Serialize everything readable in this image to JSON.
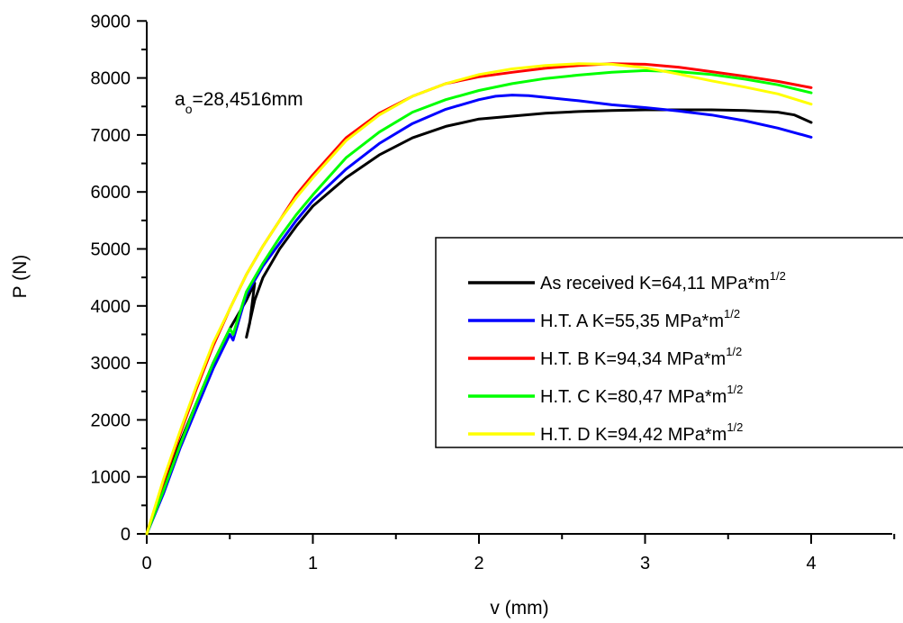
{
  "chart_data": {
    "type": "line",
    "title": "",
    "xlabel": "v (mm)",
    "ylabel": "P (N)",
    "xlim": [
      0,
      4.5
    ],
    "ylim": [
      0,
      9000
    ],
    "xticks": [
      0,
      1,
      2,
      3,
      4
    ],
    "yticks": [
      0,
      1000,
      2000,
      3000,
      4000,
      5000,
      6000,
      7000,
      8000,
      9000
    ],
    "xtick_labels": [
      "0",
      "1",
      "2",
      "3",
      "4"
    ],
    "ytick_labels": [
      "0",
      "1000",
      "2000",
      "3000",
      "4000",
      "5000",
      "6000",
      "7000",
      "8000",
      "9000"
    ],
    "grid": false,
    "legend_position": "right",
    "annotation": {
      "main": "a",
      "sub": "o",
      "rest": "=28,4516mm"
    },
    "series": [
      {
        "name": "As received K=64,11 MPa*m",
        "name_sup": "1/2",
        "color": "#000000",
        "x": [
          0,
          0.1,
          0.2,
          0.3,
          0.4,
          0.5,
          0.6,
          0.65,
          0.62,
          0.6,
          0.65,
          0.7,
          0.8,
          0.9,
          1.0,
          1.1,
          1.2,
          1.4,
          1.6,
          1.8,
          2.0,
          2.2,
          2.4,
          2.6,
          2.8,
          3.0,
          3.2,
          3.4,
          3.6,
          3.8,
          3.9,
          4.0
        ],
        "y": [
          0,
          800,
          1600,
          2300,
          3000,
          3600,
          4100,
          4400,
          3700,
          3450,
          4100,
          4500,
          5000,
          5400,
          5750,
          6000,
          6250,
          6650,
          6950,
          7150,
          7280,
          7330,
          7380,
          7410,
          7430,
          7440,
          7440,
          7440,
          7430,
          7400,
          7350,
          7220
        ]
      },
      {
        "name": "H.T. A K=55,35 MPa*m",
        "name_sup": "1/2",
        "color": "#0000ff",
        "x": [
          0,
          0.1,
          0.2,
          0.3,
          0.4,
          0.5,
          0.52,
          0.6,
          0.7,
          0.8,
          0.9,
          1.0,
          1.2,
          1.4,
          1.6,
          1.8,
          2.0,
          2.1,
          2.2,
          2.3,
          2.4,
          2.6,
          2.8,
          3.0,
          3.2,
          3.4,
          3.6,
          3.8,
          4.0
        ],
        "y": [
          0,
          700,
          1500,
          2200,
          2900,
          3500,
          3400,
          4200,
          4700,
          5100,
          5500,
          5850,
          6400,
          6850,
          7200,
          7450,
          7620,
          7680,
          7700,
          7690,
          7660,
          7600,
          7530,
          7480,
          7420,
          7350,
          7250,
          7120,
          6960
        ]
      },
      {
        "name": "H.T. B K=94,34 MPa*m",
        "name_sup": "1/2",
        "color": "#ff0000",
        "x": [
          0,
          0.1,
          0.2,
          0.3,
          0.4,
          0.5,
          0.6,
          0.7,
          0.8,
          0.9,
          1.0,
          1.2,
          1.4,
          1.6,
          1.8,
          2.0,
          2.2,
          2.4,
          2.6,
          2.8,
          3.0,
          3.2,
          3.4,
          3.6,
          3.8,
          4.0
        ],
        "y": [
          0,
          900,
          1750,
          2550,
          3300,
          3950,
          4550,
          5050,
          5500,
          5950,
          6300,
          6950,
          7380,
          7680,
          7900,
          8020,
          8100,
          8170,
          8220,
          8250,
          8240,
          8190,
          8110,
          8030,
          7940,
          7830
        ]
      },
      {
        "name": "H.T. C K=80,47 MPa*m",
        "name_sup": "1/2",
        "color": "#00ff00",
        "x": [
          0,
          0.1,
          0.2,
          0.3,
          0.4,
          0.5,
          0.52,
          0.6,
          0.7,
          0.8,
          0.9,
          1.0,
          1.2,
          1.4,
          1.6,
          1.8,
          2.0,
          2.2,
          2.4,
          2.6,
          2.8,
          3.0,
          3.2,
          3.4,
          3.6,
          3.8,
          4.0
        ],
        "y": [
          0,
          750,
          1550,
          2300,
          3000,
          3600,
          3500,
          4250,
          4750,
          5200,
          5600,
          5950,
          6600,
          7050,
          7400,
          7620,
          7780,
          7900,
          7990,
          8050,
          8100,
          8130,
          8110,
          8060,
          7980,
          7880,
          7740
        ]
      },
      {
        "name": "H.T. D K=94,42 MPa*m",
        "name_sup": "1/2",
        "color": "#ffff00",
        "x": [
          0,
          0.1,
          0.2,
          0.3,
          0.4,
          0.5,
          0.6,
          0.7,
          0.8,
          0.9,
          1.0,
          1.2,
          1.4,
          1.6,
          1.8,
          2.0,
          2.2,
          2.4,
          2.6,
          2.8,
          3.0,
          3.2,
          3.4,
          3.6,
          3.8,
          4.0
        ],
        "y": [
          0,
          950,
          1800,
          2600,
          3350,
          3950,
          4550,
          5050,
          5500,
          5900,
          6250,
          6900,
          7350,
          7680,
          7900,
          8060,
          8160,
          8220,
          8250,
          8240,
          8180,
          8070,
          7950,
          7840,
          7720,
          7540
        ]
      }
    ]
  }
}
